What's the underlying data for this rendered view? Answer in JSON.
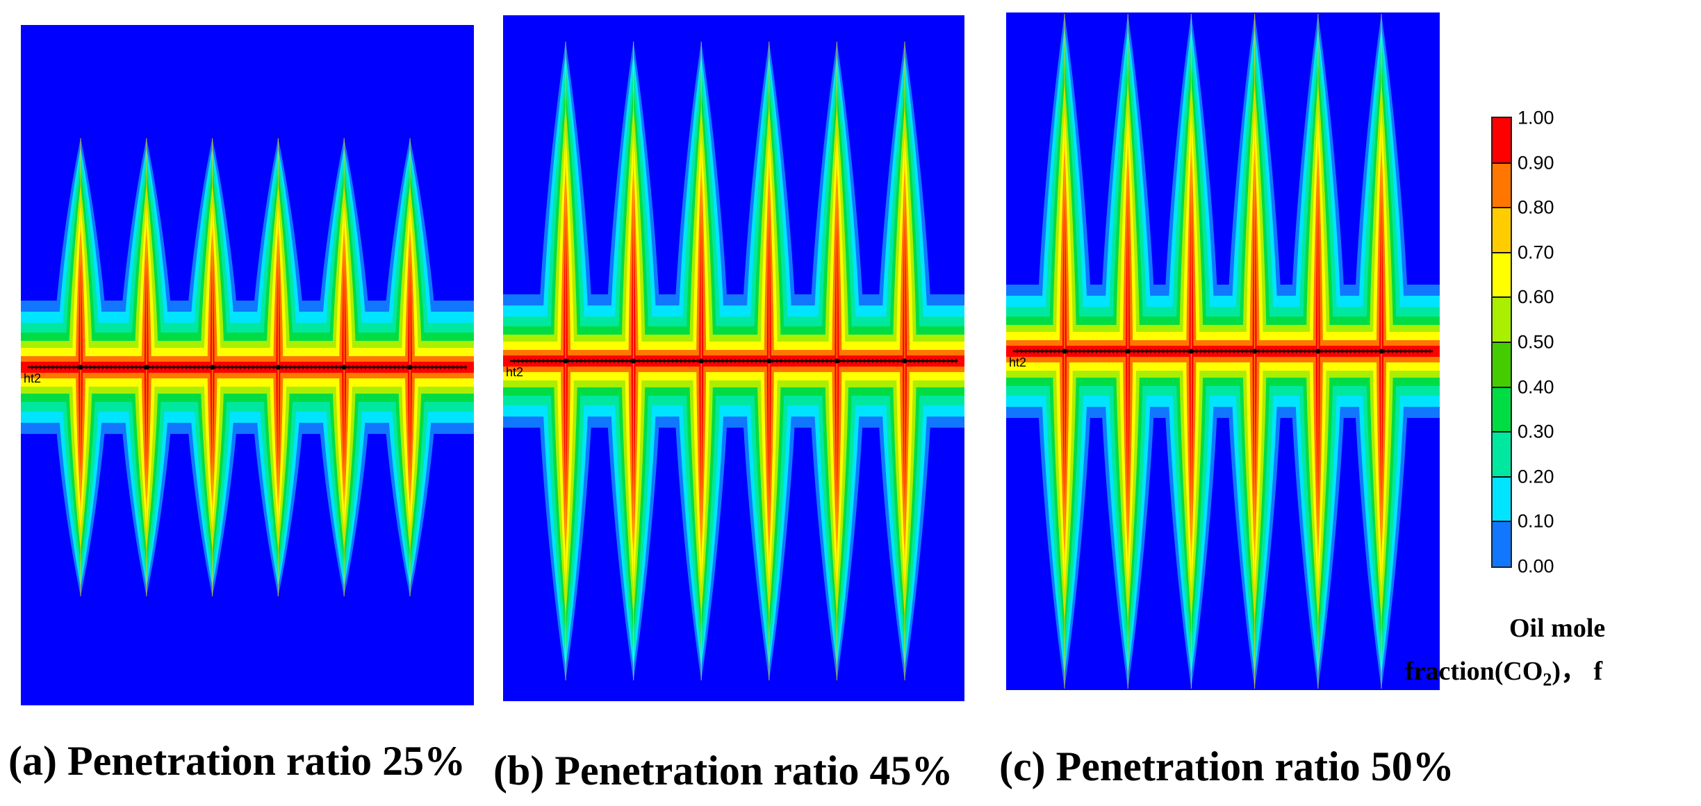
{
  "panels": [
    {
      "id": "a",
      "caption": "(a) Penetration ratio 25%",
      "well_label": "ht2",
      "penetration_percent": 25,
      "fracture_count": 6
    },
    {
      "id": "b",
      "caption": "(b) Penetration ratio 45%",
      "well_label": "ht2",
      "penetration_percent": 45,
      "fracture_count": 6
    },
    {
      "id": "c",
      "caption": "(c) Penetration ratio 50%",
      "well_label": "ht2",
      "penetration_percent": 50,
      "fracture_count": 6
    }
  ],
  "legend": {
    "title_line1": "Oil mole",
    "title_line2_prefix": "fraction(CO",
    "title_line2_sub": "2",
    "title_line2_suffix": ")，  f",
    "ticks": [
      "1.00",
      "0.90",
      "0.80",
      "0.70",
      "0.60",
      "0.50",
      "0.40",
      "0.30",
      "0.20",
      "0.10",
      "0.00"
    ],
    "colors": [
      "#ff0000",
      "#ff7700",
      "#ffcc00",
      "#ffff00",
      "#aaee00",
      "#44cc00",
      "#00dd44",
      "#00e8a0",
      "#00e4ff",
      "#1177ff",
      "#0000ff"
    ]
  },
  "colors": {
    "background": "#0000ff",
    "well_line": "#000000"
  }
}
